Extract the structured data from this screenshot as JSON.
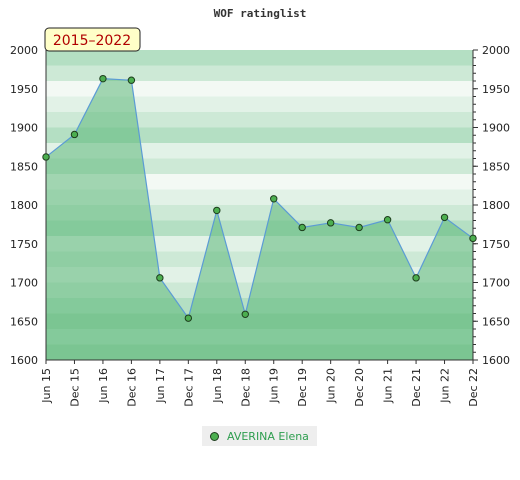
{
  "chart_data": {
    "type": "line",
    "title": "WOF ratinglist",
    "badge": "2015–2022",
    "x": [
      "Jun 15",
      "Dec 15",
      "Jun 16",
      "Dec 16",
      "Jun 17",
      "Dec 17",
      "Jun 18",
      "Dec 18",
      "Jun 19",
      "Dec 19",
      "Jun 20",
      "Dec 20",
      "Jun 21",
      "Dec 21",
      "Jun 22",
      "Dec 22"
    ],
    "series": [
      {
        "name": "AVERINA Elena",
        "values": [
          1862,
          1891,
          1963,
          1961,
          1706,
          1654,
          1793,
          1659,
          1808,
          1771,
          1777,
          1771,
          1781,
          1706,
          1784,
          1757
        ]
      }
    ],
    "ylim": [
      1600,
      2000
    ],
    "yticks": [
      "1600",
      "1650",
      "1700",
      "1750",
      "1800",
      "1850",
      "1900",
      "1950",
      "2000"
    ],
    "grid": true,
    "legend_position": "bottom",
    "colors": {
      "line": "#5b9bd5",
      "fill": "#5cb87a",
      "marker": "#4caf50",
      "text": "#2e9e4f"
    }
  }
}
